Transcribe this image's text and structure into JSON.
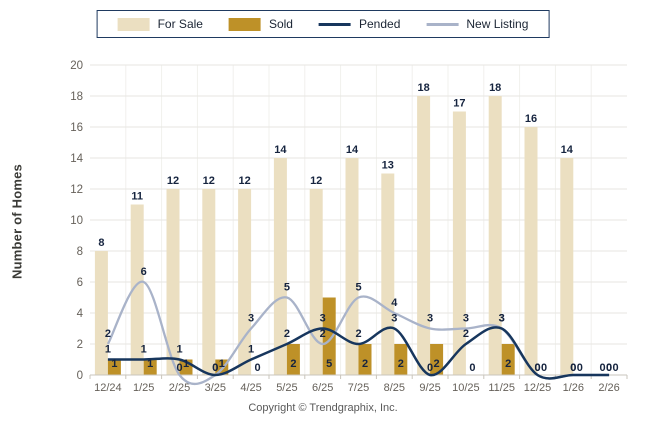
{
  "legend": {
    "items": [
      {
        "label": "For Sale",
        "swatch": "rect",
        "color": "#EBDFC1"
      },
      {
        "label": "Sold",
        "swatch": "rect",
        "color": "#BE9128"
      },
      {
        "label": "Pended",
        "swatch": "line",
        "color": "#17365D"
      },
      {
        "label": "New Listing",
        "swatch": "line",
        "color": "#A9B3C9"
      }
    ]
  },
  "chart_data": {
    "type": "bar+line combo",
    "categories": [
      "12/24",
      "1/25",
      "2/25",
      "3/25",
      "4/25",
      "5/25",
      "6/25",
      "7/25",
      "8/25",
      "9/25",
      "10/25",
      "11/25",
      "12/25",
      "1/26",
      "2/26"
    ],
    "series": [
      {
        "name": "For Sale",
        "type": "bar",
        "color": "#EBDFC1",
        "values": [
          8,
          11,
          12,
          12,
          12,
          14,
          12,
          14,
          13,
          18,
          17,
          18,
          16,
          14,
          0
        ]
      },
      {
        "name": "Sold",
        "type": "bar",
        "color": "#BE9128",
        "values": [
          1,
          1,
          1,
          1,
          0,
          2,
          5,
          2,
          2,
          2,
          0,
          2,
          0,
          0,
          0
        ]
      },
      {
        "name": "Pended",
        "type": "line",
        "color": "#17365D",
        "values": [
          1,
          1,
          1,
          0,
          1,
          2,
          3,
          2,
          3,
          0,
          2,
          3,
          0,
          0,
          0
        ]
      },
      {
        "name": "New Listing",
        "type": "line",
        "color": "#A9B3C9",
        "values": [
          2,
          6,
          0,
          0,
          3,
          5,
          2,
          5,
          4,
          3,
          3,
          3,
          0,
          0,
          0
        ]
      }
    ],
    "title": "",
    "xlabel": "",
    "ylabel": "Number of Homes",
    "ylim": [
      0,
      20
    ],
    "yticks": [
      0,
      2,
      4,
      6,
      8,
      10,
      12,
      14,
      16,
      18,
      20
    ],
    "grid": true,
    "legend_position": "top",
    "data_labels": true,
    "label_color": "#16243F",
    "tick_color": "#66615A",
    "grid_color": "#E7E6E2",
    "axis_color": "#C9C5BC"
  },
  "footer": {
    "copyright": "Copyright © Trendgraphix, Inc."
  }
}
